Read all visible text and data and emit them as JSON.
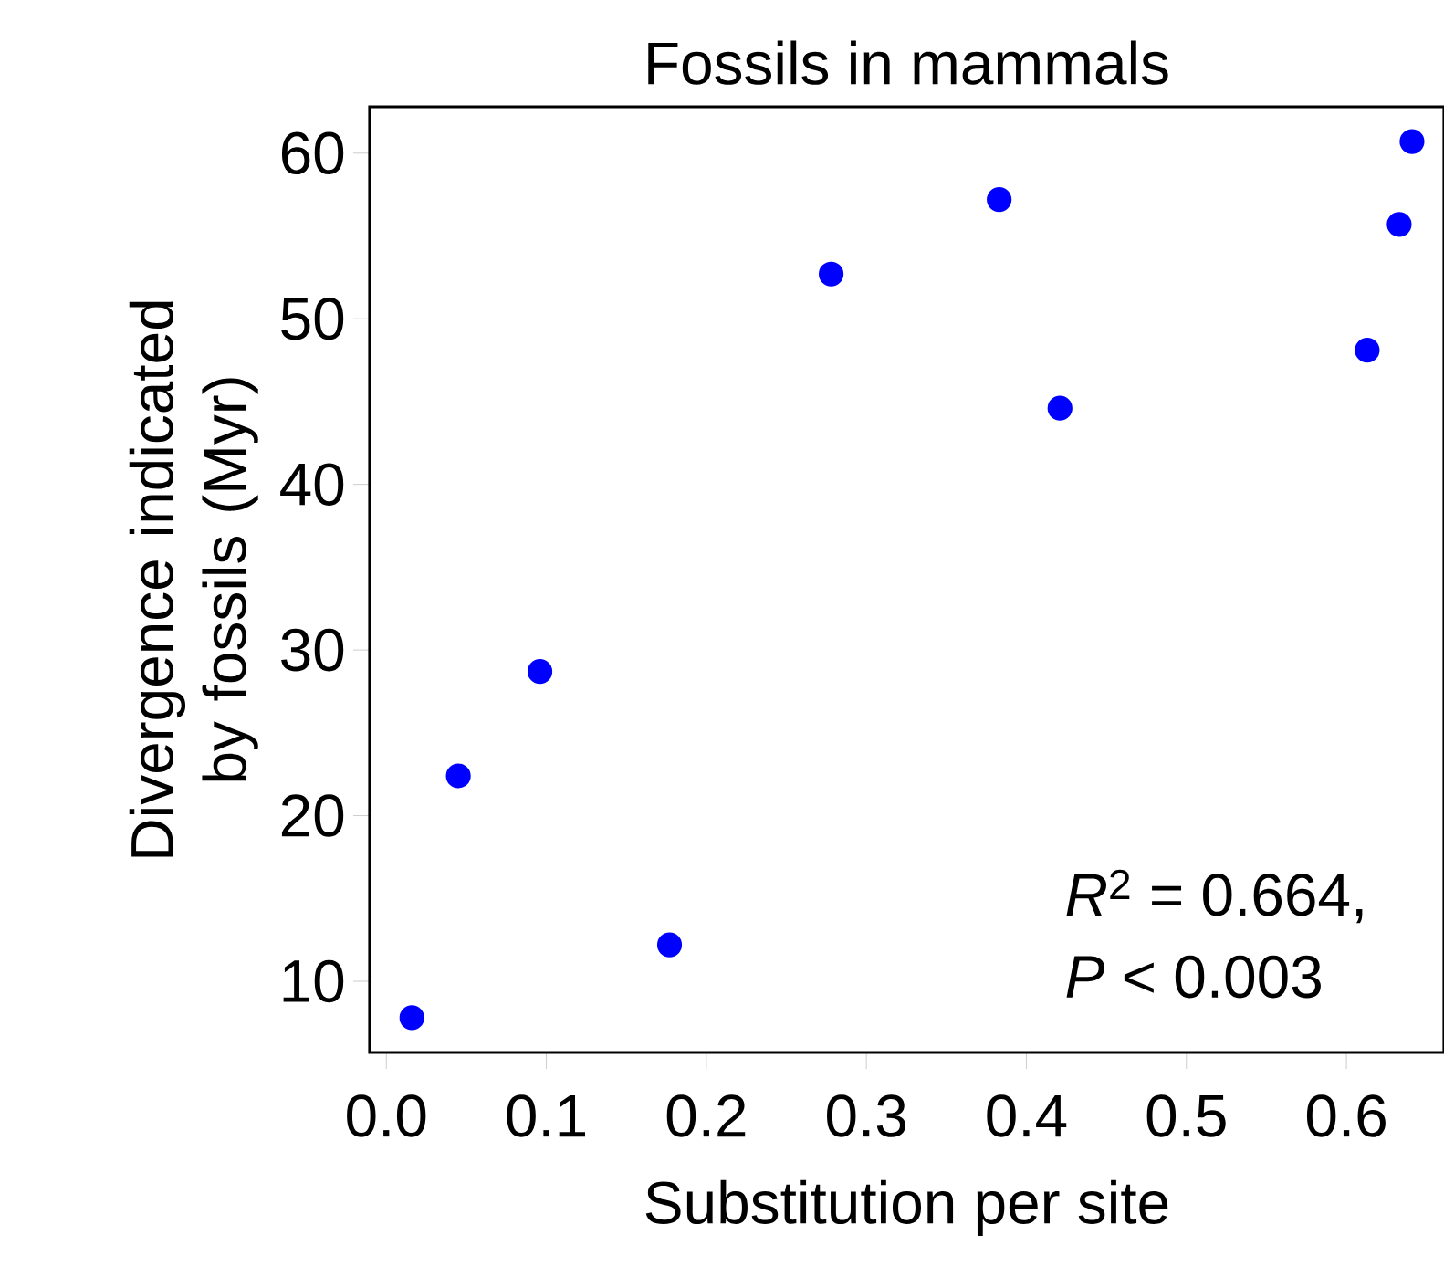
{
  "chart_data": {
    "type": "scatter",
    "title": "Fossils in mammals",
    "xlabel": "Substitution per site",
    "ylabel": "Divergence indicated by fossils (Myr)",
    "x": [
      0.016,
      0.045,
      0.096,
      0.177,
      0.278,
      0.383,
      0.421,
      0.613,
      0.633,
      0.641
    ],
    "series": [
      {
        "color": "#0000ff",
        "values": [
          7.8,
          22.4,
          28.7,
          12.2,
          52.7,
          57.2,
          44.6,
          48.1,
          55.7,
          60.7
        ]
      }
    ],
    "xlim": [
      -0.0104,
      0.661
    ],
    "ylim": [
      5.7,
      62.8
    ],
    "xticks": [
      {
        "value": 0,
        "label": "0.0"
      },
      {
        "value": 0.1,
        "label": "0.1"
      },
      {
        "value": 0.2,
        "label": "0.2"
      },
      {
        "value": 0.3,
        "label": "0.3"
      },
      {
        "value": 0.4,
        "label": "0.4"
      },
      {
        "value": 0.5,
        "label": "0.5"
      },
      {
        "value": 0.6,
        "label": "0.6"
      }
    ],
    "yticks": [
      10,
      20,
      30,
      40,
      50,
      60
    ],
    "marker": "circle",
    "grid": false,
    "annotations": [
      "*R*$^{2}$ = 0.664,",
      "*P* < 0.003"
    ]
  }
}
